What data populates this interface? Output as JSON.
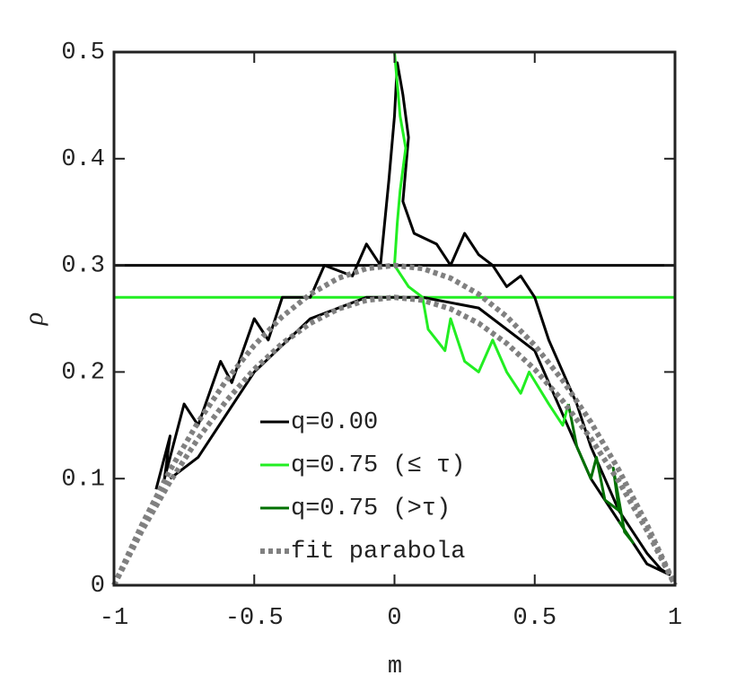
{
  "chart_data": {
    "type": "line",
    "xlabel": "m",
    "ylabel": "ρ",
    "xlim": [
      -1,
      1
    ],
    "xticks": [
      -1,
      -0.5,
      0,
      0.5,
      1
    ],
    "ylim": [
      0,
      0.5
    ],
    "yticks": [
      0,
      0.1,
      0.2,
      0.3,
      0.4,
      0.5
    ],
    "legend": "bottom-center",
    "reference_lines": [
      {
        "y": 0.3,
        "color": "#000000"
      },
      {
        "y": 0.27,
        "color": "#22ee22"
      }
    ],
    "series": [
      {
        "name": "q=0.00",
        "color": "#000000",
        "style": "solid",
        "x": [
          -0.85,
          -0.8,
          -0.82,
          -0.75,
          -0.7,
          -0.62,
          -0.58,
          -0.5,
          -0.45,
          -0.4,
          -0.3,
          -0.25,
          -0.15,
          -0.1,
          -0.05,
          -0.02,
          0.0,
          0.01,
          0.03,
          0.05,
          0.03,
          0.07,
          0.15,
          0.2,
          0.25,
          0.3,
          0.35,
          0.4,
          0.45,
          0.5,
          0.55,
          0.6,
          0.65,
          0.7,
          0.75,
          0.8,
          0.85,
          0.9,
          0.95,
          0.98,
          0.9,
          0.7,
          0.5,
          0.3,
          0.1,
          -0.1,
          -0.3,
          -0.5,
          -0.7,
          -0.8
        ],
        "values": [
          0.09,
          0.14,
          0.1,
          0.17,
          0.15,
          0.21,
          0.19,
          0.25,
          0.23,
          0.27,
          0.27,
          0.3,
          0.29,
          0.32,
          0.3,
          0.38,
          0.44,
          0.49,
          0.46,
          0.42,
          0.36,
          0.33,
          0.32,
          0.3,
          0.33,
          0.31,
          0.3,
          0.28,
          0.29,
          0.27,
          0.23,
          0.2,
          0.17,
          0.13,
          0.1,
          0.07,
          0.05,
          0.03,
          0.015,
          0.01,
          0.02,
          0.1,
          0.22,
          0.26,
          0.27,
          0.27,
          0.25,
          0.2,
          0.12,
          0.1
        ]
      },
      {
        "name": "q=0.75 (≤ τ)",
        "color": "#22ee22",
        "style": "solid",
        "x": [
          0.0,
          0.01,
          0.02,
          0.04,
          0.02,
          0.01,
          0.0,
          0.05,
          0.1,
          0.12,
          0.18,
          0.2,
          0.25,
          0.3,
          0.35,
          0.4,
          0.45,
          0.48,
          0.55,
          0.6,
          0.62
        ],
        "values": [
          0.5,
          0.47,
          0.44,
          0.41,
          0.37,
          0.34,
          0.3,
          0.28,
          0.27,
          0.24,
          0.22,
          0.25,
          0.21,
          0.2,
          0.23,
          0.2,
          0.18,
          0.2,
          0.17,
          0.15,
          0.17
        ]
      },
      {
        "name": "q=0.75 (>τ)",
        "color": "#007000",
        "style": "solid",
        "x": [
          0.62,
          0.65,
          0.7,
          0.72,
          0.75,
          0.8,
          0.78,
          0.82,
          0.85,
          0.8
        ],
        "values": [
          0.17,
          0.13,
          0.1,
          0.12,
          0.08,
          0.07,
          0.11,
          0.05,
          0.04,
          0.06
        ]
      },
      {
        "name": "fit parabola",
        "color": "#808080",
        "style": "dotted",
        "x": [
          -1,
          -0.9,
          -0.8,
          -0.7,
          -0.6,
          -0.5,
          -0.4,
          -0.3,
          -0.2,
          -0.1,
          0,
          0.1,
          0.2,
          0.3,
          0.4,
          0.5,
          0.6,
          0.7,
          0.8,
          0.9,
          1
        ],
        "values": [
          0,
          0.057,
          0.108,
          0.153,
          0.192,
          0.225,
          0.252,
          0.273,
          0.288,
          0.297,
          0.3,
          0.297,
          0.288,
          0.273,
          0.252,
          0.225,
          0.192,
          0.153,
          0.108,
          0.057,
          0
        ]
      },
      {
        "color": "#808080",
        "style": "dotted",
        "x": [
          -1,
          -0.9,
          -0.8,
          -0.7,
          -0.6,
          -0.5,
          -0.4,
          -0.3,
          -0.2,
          -0.1,
          0,
          0.1,
          0.2,
          0.3,
          0.4,
          0.5,
          0.6,
          0.7,
          0.8,
          0.9,
          1
        ],
        "values": [
          0,
          0.0513,
          0.0972,
          0.1377,
          0.1728,
          0.2025,
          0.2268,
          0.2457,
          0.2592,
          0.2673,
          0.27,
          0.2673,
          0.2592,
          0.2457,
          0.2268,
          0.2025,
          0.1728,
          0.1377,
          0.0972,
          0.0513,
          0
        ]
      }
    ]
  }
}
